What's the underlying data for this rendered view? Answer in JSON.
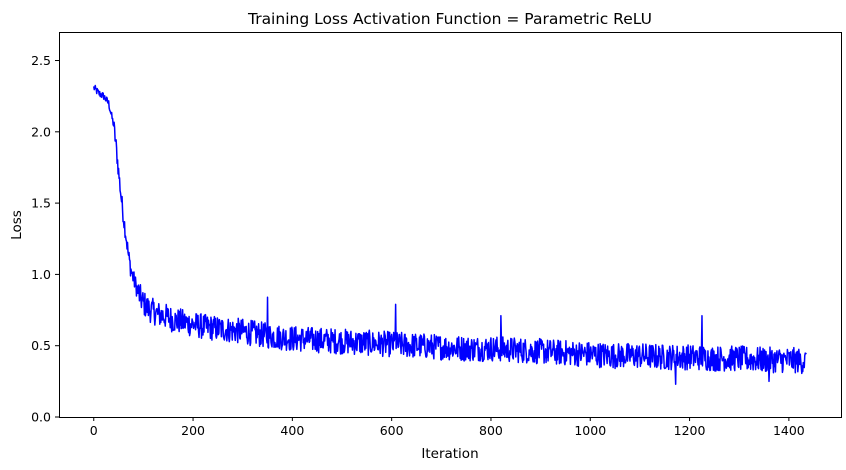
{
  "chart_data": {
    "type": "line",
    "title": "Training Loss Activation Function = Parametric ReLU",
    "xlabel": "Iteration",
    "ylabel": "Loss",
    "xlim": [
      -70,
      1505
    ],
    "ylim": [
      0,
      2.7
    ],
    "xticks": [
      0,
      200,
      400,
      600,
      800,
      1000,
      1200,
      1400
    ],
    "yticks": [
      0.0,
      0.5,
      1.0,
      1.5,
      2.0,
      2.5
    ],
    "xtick_labels": [
      "0",
      "200",
      "400",
      "600",
      "800",
      "1000",
      "1200",
      "1400"
    ],
    "ytick_labels": [
      "0.0",
      "0.5",
      "1.0",
      "1.5",
      "2.0",
      "2.5"
    ],
    "grid": false,
    "series": [
      {
        "color": "#0000ff",
        "x": [
          0,
          10,
          20,
          30,
          40,
          45,
          50,
          55,
          60,
          65,
          70,
          75,
          80,
          85,
          90,
          95,
          100,
          110,
          120,
          130,
          140,
          150,
          160,
          175,
          200,
          225,
          250,
          275,
          300,
          350,
          400,
          450,
          500,
          550,
          600,
          650,
          700,
          750,
          800,
          850,
          900,
          950,
          1000,
          1050,
          1100,
          1150,
          1200,
          1250,
          1300,
          1350,
          1400,
          1435
        ],
        "y": [
          2.31,
          2.27,
          2.25,
          2.2,
          2.05,
          1.9,
          1.72,
          1.55,
          1.4,
          1.27,
          1.13,
          1.03,
          0.97,
          0.92,
          0.87,
          0.83,
          0.8,
          0.76,
          0.74,
          0.72,
          0.71,
          0.7,
          0.68,
          0.67,
          0.65,
          0.63,
          0.62,
          0.61,
          0.6,
          0.57,
          0.55,
          0.54,
          0.53,
          0.52,
          0.51,
          0.5,
          0.49,
          0.48,
          0.48,
          0.47,
          0.46,
          0.45,
          0.44,
          0.43,
          0.43,
          0.42,
          0.42,
          0.41,
          0.41,
          0.4,
          0.4,
          0.39
        ]
      }
    ],
    "noise_amplitude": 0.09,
    "spike_values": [
      {
        "x": 350,
        "y": 0.84
      },
      {
        "x": 608,
        "y": 0.79
      },
      {
        "x": 820,
        "y": 0.71
      },
      {
        "x": 1225,
        "y": 0.71
      },
      {
        "x": 1172,
        "y": 0.23
      },
      {
        "x": 1360,
        "y": 0.25
      }
    ]
  }
}
